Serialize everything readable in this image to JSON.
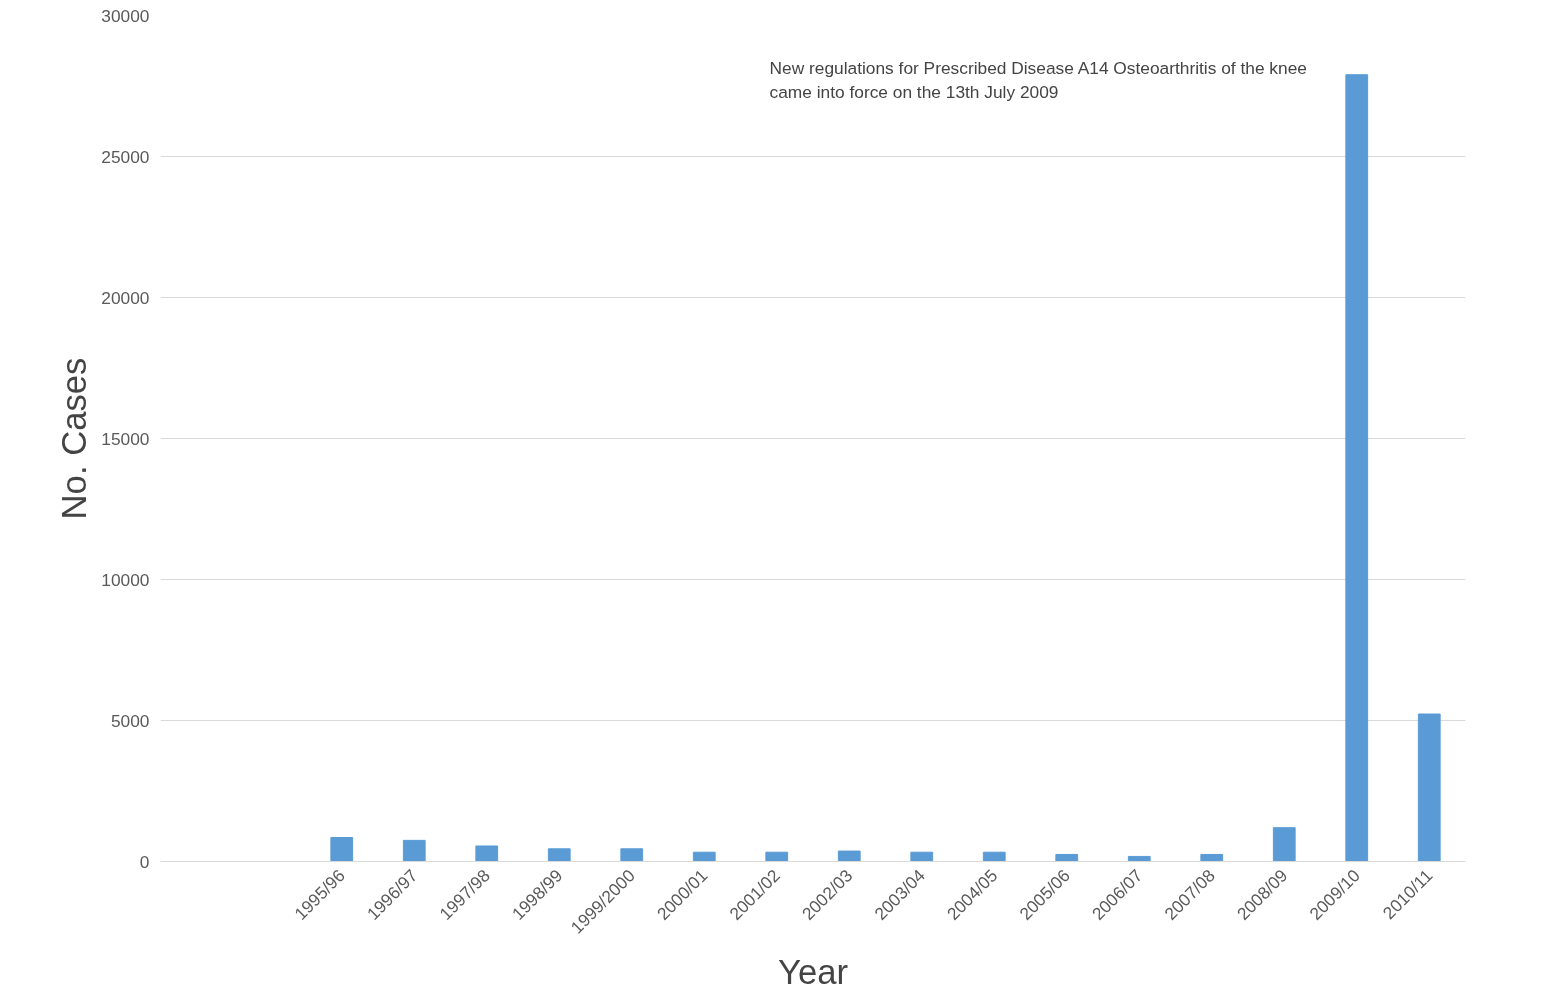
{
  "chart_data": {
    "type": "bar",
    "xlabel": "Year",
    "ylabel": "No. Cases",
    "categories": [
      null,
      null,
      "1995/96",
      "1996/97",
      "1997/98",
      "1998/99",
      "1999/2000",
      "2000/01",
      "2001/02",
      "2002/03",
      "2003/04",
      "2004/05",
      "2005/06",
      "2006/07",
      "2007/08",
      "2008/09",
      "2009/10",
      "2010/11"
    ],
    "values": [
      null,
      null,
      850,
      750,
      550,
      450,
      450,
      330,
      330,
      370,
      330,
      330,
      250,
      180,
      250,
      1200,
      27900,
      5230
    ],
    "color": "#5b9bd5",
    "ylim": [
      0,
      30000
    ],
    "yticks": [
      0,
      5000,
      10000,
      15000,
      20000,
      25000,
      30000
    ],
    "grid": "y",
    "annotations": [
      "New regulations for Prescribed Disease A14 Osteoarthritis of the knee\ncame into   force on the 13th July 2009"
    ]
  }
}
